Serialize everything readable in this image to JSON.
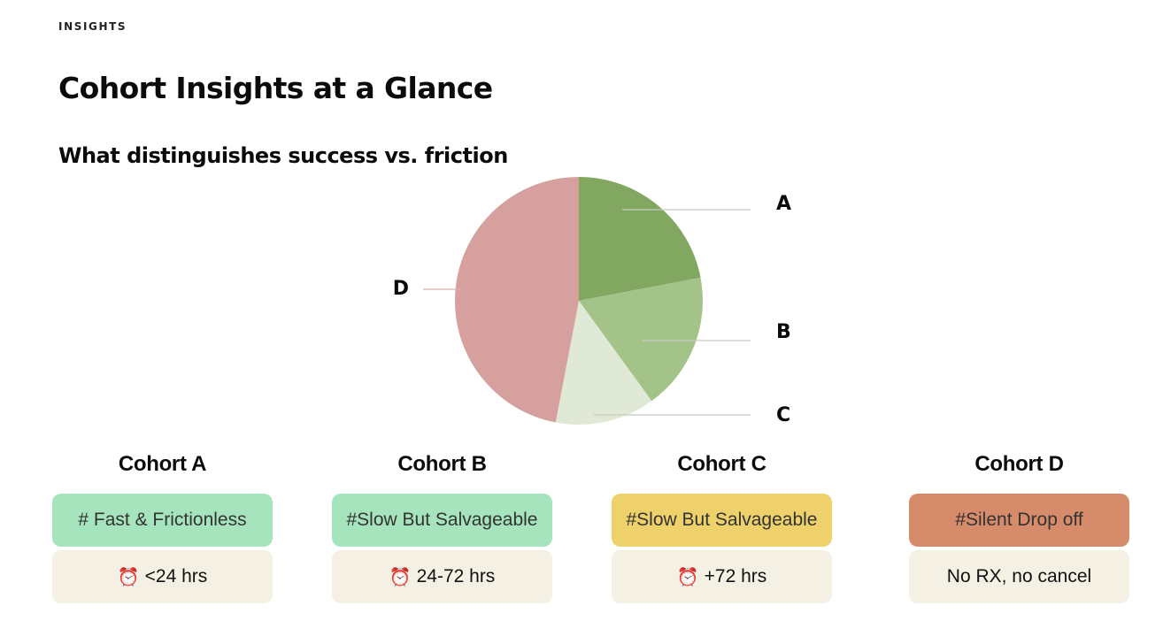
{
  "section_label": "INSIGHTS",
  "page_title": "Cohort Insights at a Glance",
  "subtitle": "What distinguishes success vs. friction",
  "chart_data": {
    "type": "pie",
    "title": "",
    "labels": [
      "A",
      "B",
      "C",
      "D"
    ],
    "values": [
      22,
      18,
      13,
      47
    ],
    "colors": [
      "#82a760",
      "#a3c388",
      "#e0e9d6",
      "#d5a09e"
    ],
    "legend": "none"
  },
  "cohorts": [
    {
      "heading": "Cohort A",
      "tag": "# Fast & Frictionless",
      "tag_color": "#a5e4bc",
      "timing": "<24 hrs",
      "timing_icon": "alarm-clock"
    },
    {
      "heading": "Cohort B",
      "tag": "#Slow But Salvageable",
      "tag_color": "#a5e4bc",
      "timing": "24-72 hrs",
      "timing_icon": "alarm-clock"
    },
    {
      "heading": "Cohort C",
      "tag": "#Slow But Salvageable",
      "tag_color": "#eed16b",
      "timing": "+72 hrs",
      "timing_icon": "alarm-clock"
    },
    {
      "heading": "Cohort D",
      "tag": "#Silent Drop off",
      "tag_color": "#d68b6a",
      "timing": "No RX, no cancel",
      "timing_icon": ""
    }
  ]
}
